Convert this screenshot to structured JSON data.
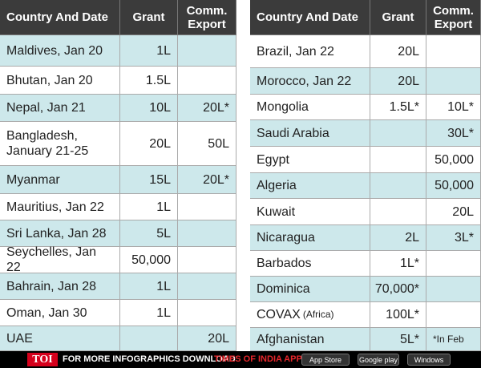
{
  "left": {
    "header": [
      "Country And Date",
      "Grant",
      "Comm. Export"
    ],
    "rows": [
      {
        "country": "Maldives, Jan 20",
        "grant": "1L"
      },
      {
        "country": "Bhutan, Jan 20",
        "grant": "1.5L"
      },
      {
        "country": "Nepal, Jan 21",
        "grant": "10L",
        "export": "20L*"
      },
      {
        "country": "Bangladesh, January 21-25",
        "grant": "20L",
        "export": "50L"
      },
      {
        "country": "Myanmar",
        "grant": "15L",
        "export": "20L*"
      },
      {
        "country": "Mauritius, Jan 22",
        "grant": "1L"
      },
      {
        "country": "Sri Lanka, Jan 28",
        "grant": "5L"
      },
      {
        "country": "Seychelles, Jan 22",
        "grant": "50,000"
      },
      {
        "country": "Bahrain, Jan 28",
        "grant": "1L"
      },
      {
        "country": "Oman, Jan 30",
        "grant": "1L"
      },
      {
        "country": "UAE",
        "export": "20L"
      }
    ]
  },
  "right": {
    "header": [
      "Country And Date",
      "Grant",
      "Comm. Export"
    ],
    "rows": [
      {
        "country": "Brazil, Jan 22",
        "grant": "20L"
      },
      {
        "country": "Morocco, Jan 22",
        "grant": "20L"
      },
      {
        "country": "Mongolia",
        "grant": "1.5L*",
        "export": "10L*"
      },
      {
        "country": "Saudi Arabia",
        "export": "30L*"
      },
      {
        "country": "Egypt",
        "export": "50,000"
      },
      {
        "country": "Algeria",
        "export": "50,000"
      },
      {
        "country": "Kuwait",
        "export": "20L"
      },
      {
        "country": "Nicaragua",
        "grant": "2L",
        "export": "3L*"
      },
      {
        "country": "Barbados",
        "grant": "1L*"
      },
      {
        "country": "Dominica",
        "grant": "70,000*"
      },
      {
        "country": "COVAX",
        "region": "(Africa)",
        "grant": "100L*"
      },
      {
        "country": "Afghanistan",
        "grant": "5L*",
        "note": "*In Feb"
      }
    ]
  },
  "footer": {
    "logo": "TOI",
    "text": "FOR MORE INFOGRAPHICS DOWNLOAD",
    "app": "TIMES OF INDIA APP",
    "badges": [
      "App Store",
      "Google play",
      "Windows Phone"
    ]
  }
}
